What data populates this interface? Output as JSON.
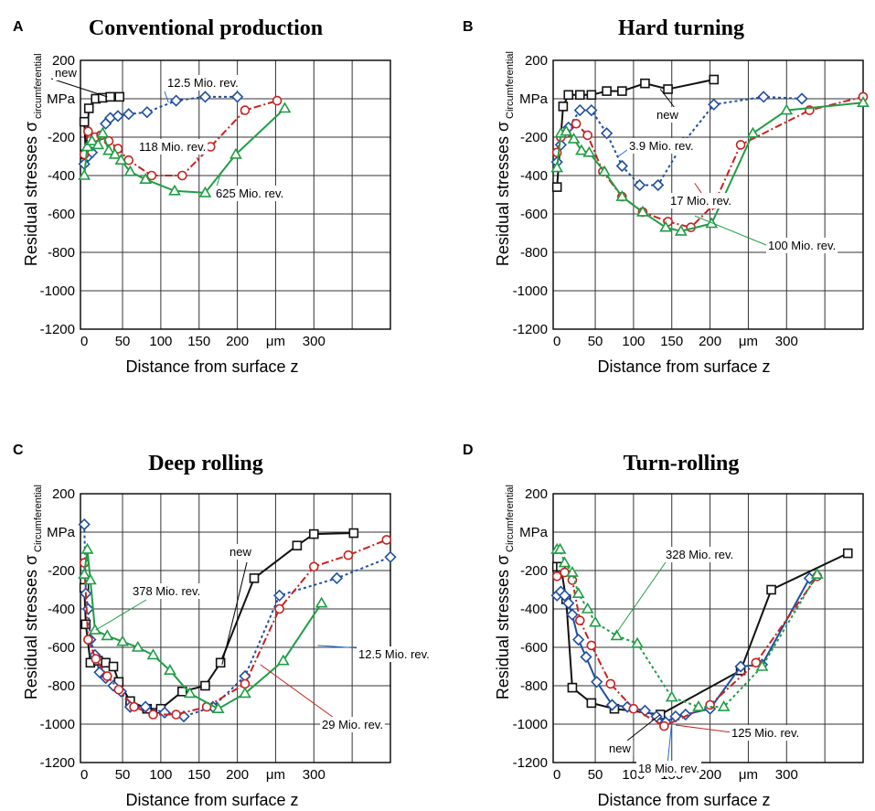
{
  "figure": {
    "colors": {
      "new": "#111111",
      "blue": "#1f4fa3",
      "red": "#c8221f",
      "green": "#1f9e45",
      "leader_black": "#000000",
      "leader_red": "#c8221f",
      "leader_green": "#1f9e45",
      "leader_blue": "#1f6fcf"
    }
  },
  "chart_data": [
    {
      "panel_letter": "A",
      "title": "Conventional production",
      "type": "line",
      "xlabel": "Distance from surface z",
      "ylabel": "Residual stresses σ",
      "ylabel_sub": "circumferential",
      "y_unit": "MPa",
      "x_unit": "μm",
      "xlim": [
        -5,
        400
      ],
      "ylim": [
        -1200,
        200
      ],
      "x_ticks": [
        "0",
        "50",
        "100",
        "150",
        "200",
        "μm",
        "300"
      ],
      "y_ticks": [
        "200",
        "MPa",
        "-200",
        "-400",
        "-600",
        "-800",
        "-1000",
        "-1200"
      ],
      "grid": true,
      "series": [
        {
          "name": "new",
          "color_key": "new",
          "marker": "square",
          "dash": "solid",
          "x": [
            0,
            2,
            6,
            15,
            24,
            34,
            46
          ],
          "y": [
            -120,
            -290,
            -50,
            0,
            5,
            10,
            10
          ]
        },
        {
          "name": "12.5 Mio. rev.",
          "color_key": "blue",
          "marker": "diamond",
          "dash": "dot",
          "x": [
            0,
            5,
            10,
            18,
            28,
            34,
            44,
            58,
            82,
            120,
            158,
            200
          ],
          "y": [
            -340,
            -300,
            -280,
            -200,
            -130,
            -100,
            -90,
            -80,
            -70,
            -10,
            10,
            10
          ]
        },
        {
          "name": "118 Mio. rev.",
          "color_key": "red",
          "marker": "circle",
          "dash": "dashdot",
          "x": [
            0,
            5,
            14,
            22,
            32,
            44,
            58,
            88,
            128,
            165,
            210,
            252
          ],
          "y": [
            -290,
            -170,
            -200,
            -190,
            -220,
            -260,
            -320,
            -400,
            -400,
            -250,
            -60,
            -10
          ]
        },
        {
          "name": "625 Mio. rev.",
          "color_key": "green",
          "marker": "triangle",
          "dash": "solid",
          "x": [
            0,
            4,
            10,
            18,
            24,
            32,
            40,
            48,
            60,
            80,
            118,
            158,
            198,
            262
          ],
          "y": [
            -400,
            -250,
            -220,
            -240,
            -180,
            -270,
            -290,
            -320,
            -380,
            -420,
            -480,
            -490,
            -290,
            -50
          ]
        }
      ],
      "annotations": [
        {
          "text": "new",
          "series": "new"
        },
        {
          "text": "12.5 Mio. rev.",
          "series": "12.5 Mio. rev."
        },
        {
          "text": "118 Mio. rev.",
          "series": "118 Mio. rev."
        },
        {
          "text": "625 Mio. rev.",
          "series": "625 Mio. rev."
        }
      ]
    },
    {
      "panel_letter": "B",
      "title": "Hard turning",
      "type": "line",
      "xlabel": "Distance from surface z",
      "ylabel": "Residual stresses σ",
      "ylabel_sub": "Circumferential",
      "y_unit": "MPa",
      "x_unit": "μm",
      "xlim": [
        -5,
        400
      ],
      "ylim": [
        -1200,
        200
      ],
      "x_ticks": [
        "0",
        "50",
        "100",
        "150",
        "200",
        "μm",
        "300"
      ],
      "y_ticks": [
        "200",
        "MPa",
        "-200",
        "-400",
        "-600",
        "-800",
        "-1000",
        "-1200"
      ],
      "grid": true,
      "series": [
        {
          "name": "new",
          "color_key": "new",
          "marker": "square",
          "dash": "solid",
          "x": [
            0,
            8,
            15,
            30,
            45,
            65,
            85,
            115,
            145,
            205
          ],
          "y": [
            -460,
            -40,
            20,
            20,
            20,
            40,
            40,
            80,
            50,
            100
          ]
        },
        {
          "name": "3.9 Mio. rev.",
          "color_key": "blue",
          "marker": "diamond",
          "dash": "dot",
          "x": [
            0,
            5,
            15,
            30,
            45,
            65,
            85,
            108,
            132,
            165,
            205,
            270,
            320
          ],
          "y": [
            -330,
            -240,
            -150,
            -60,
            -60,
            -180,
            -350,
            -450,
            -450,
            -230,
            -30,
            10,
            0
          ]
        },
        {
          "name": "17 Mio. rev.",
          "color_key": "red",
          "marker": "circle",
          "dash": "dashdot",
          "x": [
            0,
            5,
            12,
            25,
            40,
            60,
            85,
            112,
            145,
            175,
            205,
            240,
            330,
            400
          ],
          "y": [
            -280,
            -200,
            -180,
            -130,
            -190,
            -380,
            -510,
            -590,
            -640,
            -670,
            -550,
            -240,
            -60,
            10
          ]
        },
        {
          "name": "100 Mio. rev.",
          "color_key": "green",
          "marker": "triangle",
          "dash": "solid",
          "x": [
            0,
            5,
            12,
            22,
            32,
            42,
            62,
            85,
            112,
            142,
            162,
            202,
            256,
            300,
            400
          ],
          "y": [
            -360,
            -180,
            -170,
            -210,
            -270,
            -280,
            -380,
            -510,
            -590,
            -670,
            -690,
            -650,
            -180,
            -60,
            -20
          ]
        }
      ],
      "annotations": [
        {
          "text": "new",
          "series": "new"
        },
        {
          "text": "3.9 Mio. rev.",
          "series": "3.9 Mio. rev."
        },
        {
          "text": "17 Mio. rev.",
          "series": "17 Mio. rev."
        },
        {
          "text": "100 Mio. rev.",
          "series": "100 Mio. rev."
        }
      ]
    },
    {
      "panel_letter": "C",
      "title": "Deep rolling",
      "type": "line",
      "xlabel": "Distance from surface z",
      "ylabel": "Residual stresses σ",
      "ylabel_sub": "Circumferential",
      "y_unit": "MPa",
      "x_unit": "μm",
      "xlim": [
        -5,
        400
      ],
      "ylim": [
        -1200,
        200
      ],
      "x_ticks": [
        "0",
        "50",
        "100",
        "150",
        "200",
        "μm",
        "300"
      ],
      "y_ticks": [
        "200",
        "MPa",
        "-200",
        "-400",
        "-600",
        "-800",
        "-1000",
        "-1200"
      ],
      "grid": true,
      "series": [
        {
          "name": "new",
          "color_key": "new",
          "marker": "square",
          "dash": "solid",
          "x": [
            0,
            2,
            8,
            18,
            28,
            38,
            45,
            60,
            82,
            100,
            128,
            158,
            178,
            222,
            278,
            300,
            352
          ],
          "y": [
            -290,
            -480,
            -680,
            -670,
            -680,
            -700,
            -780,
            -880,
            -920,
            -920,
            -830,
            -800,
            -680,
            -240,
            -70,
            -10,
            -5
          ]
        },
        {
          "name": "12.5 Mio. rev.",
          "color_key": "blue",
          "marker": "diamond",
          "dash": "dot",
          "x": [
            0,
            2,
            5,
            8,
            14,
            20,
            28,
            38,
            48,
            60,
            80,
            105,
            130,
            168,
            210,
            255,
            330,
            400
          ],
          "y": [
            40,
            -320,
            -400,
            -560,
            -640,
            -730,
            -760,
            -800,
            -830,
            -910,
            -910,
            -940,
            -960,
            -910,
            -750,
            -330,
            -240,
            -130
          ]
        },
        {
          "name": "29 Mio. rev.",
          "color_key": "red",
          "marker": "circle",
          "dash": "dashdot",
          "x": [
            0,
            5,
            15,
            30,
            45,
            65,
            90,
            120,
            160,
            210,
            255,
            300,
            345,
            395
          ],
          "y": [
            -160,
            -560,
            -660,
            -750,
            -820,
            -910,
            -950,
            -950,
            -910,
            -790,
            -400,
            -180,
            -120,
            -40
          ]
        },
        {
          "name": "378 Mio. rev.",
          "color_key": "green",
          "marker": "triangle",
          "dash": "solid",
          "x": [
            0,
            4,
            8,
            14,
            30,
            50,
            70,
            90,
            112,
            138,
            175,
            210,
            260,
            310
          ],
          "y": [
            -220,
            -90,
            -250,
            -510,
            -540,
            -570,
            -600,
            -640,
            -720,
            -840,
            -920,
            -840,
            -670,
            -370
          ]
        }
      ],
      "annotations": [
        {
          "text": "new",
          "series": "new"
        },
        {
          "text": "378 Mio. rev.",
          "series": "378 Mio. rev."
        },
        {
          "text": "12.5 Mio. rev.",
          "series": "12.5 Mio. rev."
        },
        {
          "text": "29 Mio. rev.",
          "series": "29 Mio. rev."
        }
      ]
    },
    {
      "panel_letter": "D",
      "title": "Turn-rolling",
      "type": "line",
      "xlabel": "Distance from surface z",
      "ylabel": "Residual stresses σ",
      "ylabel_sub": "Circumferential",
      "y_unit": "MPa",
      "x_unit": "μm",
      "xlim": [
        -5,
        400
      ],
      "ylim": [
        -1200,
        200
      ],
      "x_ticks": [
        "0",
        "50",
        "100",
        "150",
        "200",
        "μm",
        "300"
      ],
      "y_ticks": [
        "200",
        "MPa",
        "-200",
        "-400",
        "-600",
        "-800",
        "-1000",
        "-1200"
      ],
      "grid": true,
      "series": [
        {
          "name": "new",
          "color_key": "new",
          "marker": "square",
          "dash": "solid",
          "x": [
            0,
            5,
            12,
            20,
            45,
            75,
            135,
            240,
            280,
            380
          ],
          "y": [
            -180,
            -180,
            -350,
            -810,
            -890,
            -920,
            -950,
            -720,
            -300,
            -110
          ]
        },
        {
          "name": "18 Mio. rev.",
          "color_key": "blue",
          "marker": "diamond",
          "dash": "solid",
          "x": [
            0,
            5,
            10,
            15,
            20,
            28,
            38,
            52,
            72,
            92,
            115,
            130,
            142,
            155,
            168,
            200,
            240,
            268,
            330
          ],
          "y": [
            -330,
            -310,
            -330,
            -370,
            -430,
            -560,
            -650,
            -780,
            -900,
            -910,
            -930,
            -960,
            -990,
            -960,
            -950,
            -920,
            -700,
            -690,
            -240
          ]
        },
        {
          "name": "125 Mio. rev.",
          "color_key": "red",
          "marker": "circle",
          "dash": "dashdot",
          "x": [
            0,
            10,
            20,
            30,
            45,
            70,
            100,
            140,
            200,
            260,
            340
          ],
          "y": [
            -230,
            -210,
            -250,
            -460,
            -590,
            -790,
            -920,
            -1010,
            -900,
            -680,
            -230
          ]
        },
        {
          "name": "328 Mio. rev.",
          "color_key": "green",
          "marker": "triangle",
          "dash": "dot",
          "x": [
            0,
            4,
            10,
            20,
            28,
            40,
            50,
            78,
            105,
            150,
            185,
            218,
            268,
            340
          ],
          "y": [
            -90,
            -90,
            -160,
            -210,
            -320,
            -400,
            -470,
            -540,
            -580,
            -860,
            -910,
            -910,
            -700,
            -220
          ]
        }
      ],
      "annotations": [
        {
          "text": "328 Mio. rev.",
          "series": "328 Mio. rev."
        },
        {
          "text": "new",
          "series": "new"
        },
        {
          "text": "18 Mio. rev.",
          "series": "18 Mio. rev."
        },
        {
          "text": "125 Mio. rev.",
          "series": "125 Mio. rev."
        }
      ]
    }
  ]
}
